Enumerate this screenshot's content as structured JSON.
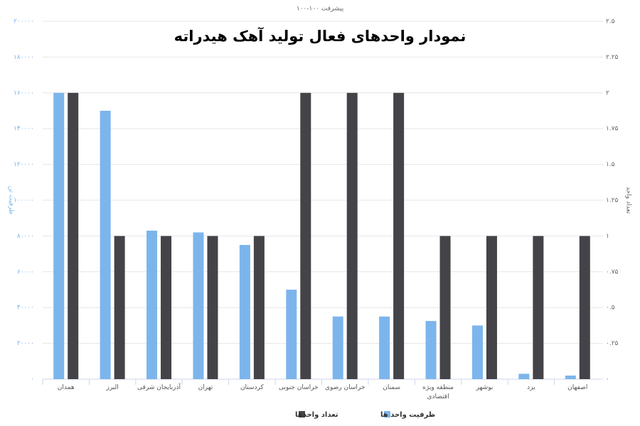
{
  "chart_data": {
    "type": "bar",
    "title": "نمودار واحدهای فعال تولید آهک هیدراته",
    "subtitle": "پیشرفت ۱۰۰-۱۰۰",
    "y_label": "ظرفیت تن",
    "y2_label": "تعداد واحد",
    "categories": [
      "همدان",
      "البرز",
      "آذربایجان شرقی",
      "تهران",
      "کردستان",
      "خراسان جنوبی",
      "خراسان رضوی",
      "سمنان",
      "منطقه ویژه اقتصادی",
      "بوشهر",
      "یزد",
      "اصفهان"
    ],
    "series": [
      {
        "name": "ظرفیت واحد ها",
        "color": "#7cb5ec",
        "values": [
          160000,
          150000,
          83000,
          82000,
          75000,
          50000,
          35000,
          35000,
          32500,
          30000,
          3000,
          2000
        ]
      },
      {
        "name": "تعداد واحدها",
        "color": "#434348",
        "axis": "y2",
        "values": [
          2,
          1,
          1,
          1,
          1,
          2,
          2,
          2,
          1,
          1,
          1,
          1
        ]
      }
    ],
    "ylim": [
      0,
      200000
    ],
    "yticks": [
      {
        "value": 0,
        "label": "۰"
      },
      {
        "value": 20000,
        "label": "۲۰۰۰۰"
      },
      {
        "value": 40000,
        "label": "۴۰۰۰۰"
      },
      {
        "value": 60000,
        "label": "۶۰۰۰۰"
      },
      {
        "value": 80000,
        "label": "۸۰۰۰۰"
      },
      {
        "value": 100000,
        "label": "۱۰۰۰۰۰"
      },
      {
        "value": 120000,
        "label": "۱۲۰۰۰۰"
      },
      {
        "value": 140000,
        "label": "۱۴۰۰۰۰"
      },
      {
        "value": 160000,
        "label": "۱۶۰۰۰۰"
      },
      {
        "value": 180000,
        "label": "۱۸۰۰۰۰"
      },
      {
        "value": 200000,
        "label": "۲۰۰۰۰۰"
      }
    ],
    "y2lim": [
      0,
      2.5
    ],
    "y2ticks": [
      {
        "value": 0,
        "label": "۰"
      },
      {
        "value": 0.25,
        "label": "۰.۲۵"
      },
      {
        "value": 0.5,
        "label": "۰.۵"
      },
      {
        "value": 0.75,
        "label": "۰.۷۵"
      },
      {
        "value": 1,
        "label": "۱"
      },
      {
        "value": 1.25,
        "label": "۱.۲۵"
      },
      {
        "value": 1.5,
        "label": "۱.۵"
      },
      {
        "value": 1.75,
        "label": "۱.۷۵"
      },
      {
        "value": 2,
        "label": "۲"
      },
      {
        "value": 2.25,
        "label": "۲.۲۵"
      },
      {
        "value": 2.5,
        "label": "۲.۵"
      }
    ],
    "grid": true
  }
}
